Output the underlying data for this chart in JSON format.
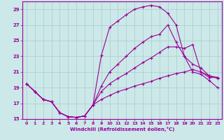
{
  "xlabel": "Windchill (Refroidissement éolien,°C)",
  "background_color": "#cce8e8",
  "line_color": "#990099",
  "grid_color": "#aacccc",
  "xlim": [
    -0.5,
    23.5
  ],
  "ylim": [
    15,
    30
  ],
  "xticks": [
    0,
    1,
    2,
    3,
    4,
    5,
    6,
    7,
    8,
    9,
    10,
    11,
    12,
    13,
    14,
    15,
    16,
    17,
    18,
    19,
    20,
    21,
    22,
    23
  ],
  "yticks": [
    15,
    17,
    19,
    21,
    23,
    25,
    27,
    29
  ],
  "lines": [
    {
      "x": [
        0,
        1,
        2,
        3,
        4,
        5,
        6,
        7,
        8,
        9,
        10,
        11,
        12,
        13,
        14,
        15,
        16,
        17,
        18,
        19,
        20,
        21,
        22,
        23
      ],
      "y": [
        19.5,
        18.5,
        17.5,
        17.2,
        15.8,
        15.3,
        15.2,
        15.4,
        16.8,
        23.1,
        26.7,
        27.5,
        28.3,
        29.0,
        29.3,
        29.5,
        29.3,
        28.5,
        27.0,
        23.0,
        21.0,
        20.7,
        19.9,
        19.0
      ]
    },
    {
      "x": [
        0,
        1,
        2,
        3,
        4,
        5,
        6,
        7,
        8,
        9,
        10,
        11,
        12,
        13,
        14,
        15,
        16,
        17,
        18,
        19,
        20,
        21,
        22,
        23
      ],
      "y": [
        19.5,
        18.5,
        17.5,
        17.2,
        15.8,
        15.3,
        15.2,
        15.4,
        16.8,
        19.2,
        21.0,
        22.0,
        23.0,
        24.0,
        24.8,
        25.5,
        25.8,
        27.0,
        24.8,
        23.0,
        22.0,
        21.5,
        20.5,
        20.2
      ]
    },
    {
      "x": [
        0,
        1,
        2,
        3,
        4,
        5,
        6,
        7,
        8,
        9,
        10,
        11,
        12,
        13,
        14,
        15,
        16,
        17,
        18,
        19,
        20,
        21,
        22,
        23
      ],
      "y": [
        19.5,
        18.5,
        17.5,
        17.2,
        15.8,
        15.3,
        15.2,
        15.4,
        16.8,
        18.5,
        19.5,
        20.2,
        20.8,
        21.5,
        22.2,
        22.8,
        23.5,
        24.2,
        24.2,
        24.0,
        24.5,
        21.0,
        20.3,
        20.3
      ]
    },
    {
      "x": [
        0,
        1,
        2,
        3,
        4,
        5,
        6,
        7,
        8,
        9,
        10,
        11,
        12,
        13,
        14,
        15,
        16,
        17,
        18,
        19,
        20,
        21,
        22,
        23
      ],
      "y": [
        19.5,
        18.5,
        17.5,
        17.2,
        15.8,
        15.3,
        15.2,
        15.4,
        16.8,
        17.5,
        18.0,
        18.5,
        18.8,
        19.2,
        19.5,
        19.8,
        20.2,
        20.5,
        20.8,
        21.0,
        21.3,
        21.0,
        20.5,
        20.3
      ]
    }
  ]
}
